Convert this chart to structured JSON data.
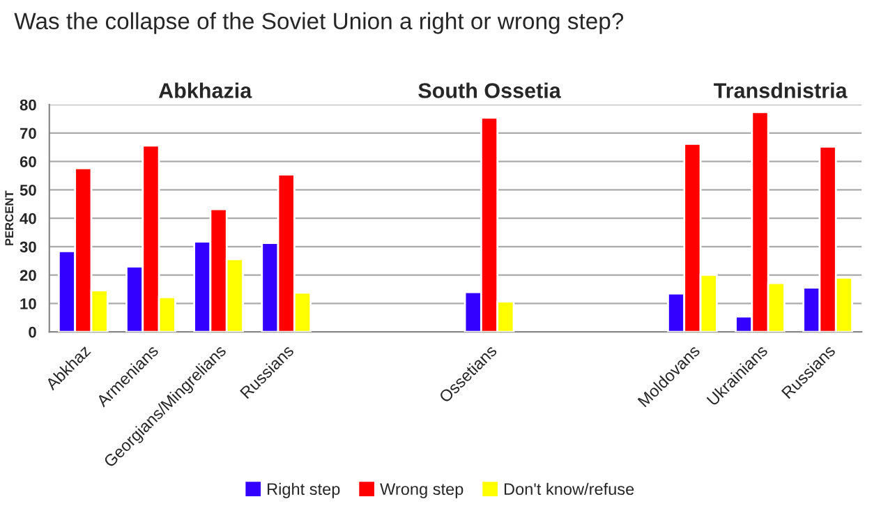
{
  "chart_data": {
    "type": "bar",
    "title": "Was the collapse of the Soviet Union a right or wrong step?",
    "ylabel": "PERCENT",
    "categories": [
      "Abkhaz",
      "Armenians",
      "Georgians/Mingrelians",
      "Russians",
      null,
      null,
      "Ossetians",
      null,
      null,
      "Moldovans",
      "Ukrainians",
      "Russians"
    ],
    "series": [
      {
        "name": "Right step",
        "color": "#3300ff",
        "values": [
          28.4,
          23,
          31.8,
          31.3,
          null,
          null,
          14,
          null,
          null,
          13.5,
          5.4,
          15.6
        ]
      },
      {
        "name": "Wrong step",
        "color": "#ff0000",
        "values": [
          57.6,
          65.6,
          43.2,
          55.4,
          null,
          null,
          75.4,
          null,
          null,
          66.2,
          77.4,
          65.2
        ]
      },
      {
        "name": "Don't know/refuse",
        "color": "#ffff00",
        "values": [
          14.6,
          12.2,
          25.6,
          13.8,
          null,
          null,
          10.7,
          null,
          null,
          20.1,
          17.2,
          19.1
        ]
      }
    ],
    "annotations": [
      "Abkhazia",
      "South Ossetia",
      "Transdnistria"
    ],
    "ylim": [
      0,
      80
    ],
    "yticks": [
      0,
      10,
      20,
      30,
      40,
      50,
      60,
      70,
      80
    ],
    "grid": "y",
    "legend": "bottom"
  }
}
